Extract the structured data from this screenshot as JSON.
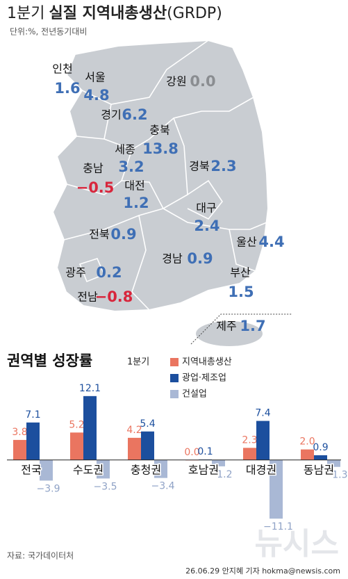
{
  "header": {
    "title_light": "1분기",
    "title_bold": "실질 지역내총생산",
    "title_tail": "(GRDP)",
    "subtitle": "단위:%, 전년동기대비"
  },
  "map": {
    "regions": [
      {
        "name": "인천",
        "value": 1.6,
        "value_label": "1.6"
      },
      {
        "name": "서울",
        "value": 4.8,
        "value_label": "4.8"
      },
      {
        "name": "강원",
        "value": 0.0,
        "value_label": "0.0"
      },
      {
        "name": "경기",
        "value": 6.2,
        "value_label": "6.2"
      },
      {
        "name": "충북",
        "value": 13.8,
        "value_label": "13.8"
      },
      {
        "name": "세종",
        "value": 3.2,
        "value_label": "3.2"
      },
      {
        "name": "경북",
        "value": 2.3,
        "value_label": "2.3"
      },
      {
        "name": "충남",
        "value": -0.5,
        "value_label": "−0.5"
      },
      {
        "name": "대전",
        "value": 1.2,
        "value_label": "1.2"
      },
      {
        "name": "대구",
        "value": 2.4,
        "value_label": "2.4"
      },
      {
        "name": "전북",
        "value": 0.9,
        "value_label": "0.9"
      },
      {
        "name": "울산",
        "value": 4.4,
        "value_label": "4.4"
      },
      {
        "name": "경남",
        "value": 0.9,
        "value_label": "0.9"
      },
      {
        "name": "부산",
        "value": 1.5,
        "value_label": "1.5"
      },
      {
        "name": "광주",
        "value": 0.2,
        "value_label": "0.2"
      },
      {
        "name": "전남",
        "value": -0.8,
        "value_label": "−0.8"
      },
      {
        "name": "제주",
        "value": 1.7,
        "value_label": "1.7"
      }
    ],
    "colors": {
      "positive": "#3f6fb5",
      "zero": "#8a8d91",
      "negative": "#d8263c"
    }
  },
  "chart_data": {
    "type": "bar",
    "title": "권역별 성장률",
    "legend_title": "1분기",
    "categories": [
      "전국",
      "수도권",
      "충청권",
      "호남권",
      "대경권",
      "동남권"
    ],
    "series": [
      {
        "name": "지역내총생산",
        "color": "#ea7560",
        "values": [
          3.8,
          5.2,
          4.2,
          0.0,
          2.3,
          2.0
        ],
        "value_labels": [
          "3.8",
          "5.2",
          "4.2",
          "0.0",
          "2.3",
          "2.0"
        ]
      },
      {
        "name": "광업·제조업",
        "color": "#1c4f9e",
        "values": [
          7.1,
          12.1,
          5.4,
          0.1,
          7.4,
          0.9
        ],
        "value_labels": [
          "7.1",
          "12.1",
          "5.4",
          "0.1",
          "7.4",
          "0.9"
        ]
      },
      {
        "name": "건설업",
        "color": "#a9b8d5",
        "values": [
          -3.9,
          -3.5,
          -3.4,
          -1.2,
          -11.1,
          -1.3
        ],
        "value_labels": [
          "−3.9",
          "−3.5",
          "−3.4",
          "−1.2",
          "−11.1",
          "−1.3"
        ]
      }
    ],
    "ylim": [
      -12,
      13
    ]
  },
  "footer": {
    "source": "자료: 국가데이터처",
    "credit": "26.06.29 안지혜 기자 hokma@newsis.com",
    "watermark": "뉴시스"
  }
}
